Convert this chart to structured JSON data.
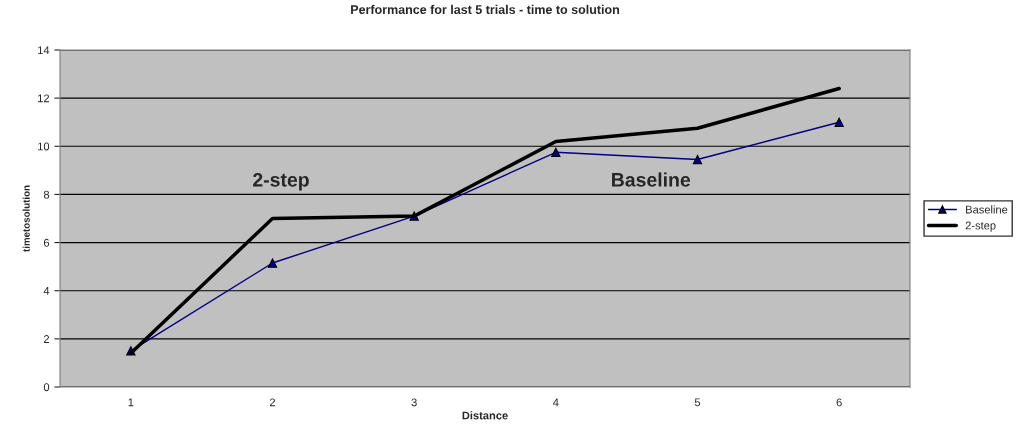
{
  "chart_data": {
    "type": "line",
    "title": "Performance for last 5 trials - time to solution",
    "xlabel": "Distance",
    "ylabel": "timetosolution",
    "categories": [
      "1",
      "2",
      "3",
      "4",
      "5",
      "6"
    ],
    "series": [
      {
        "name": "Baseline",
        "color": "#000080",
        "values": [
          1.5,
          5.15,
          7.1,
          9.75,
          9.45,
          11.0
        ],
        "marker": "triangle"
      },
      {
        "name": "2-step",
        "color": "#000000",
        "values": [
          1.4,
          7.0,
          7.1,
          10.2,
          10.75,
          12.4
        ],
        "marker": "none"
      }
    ],
    "ylim": [
      0,
      14
    ],
    "yticks": [
      0,
      2,
      4,
      6,
      8,
      10,
      12,
      14
    ],
    "grid": "y",
    "legend": "right",
    "annotations": [
      "2-step",
      "Baseline"
    ]
  }
}
